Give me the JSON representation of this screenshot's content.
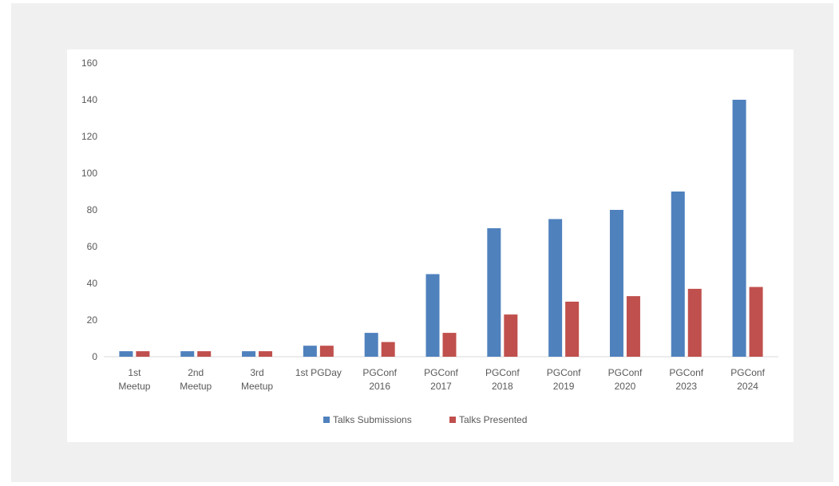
{
  "colors": {
    "page_bg": "#f0f0f0",
    "plot_bg": "#ffffff",
    "axis": "#d9d9d9",
    "text": "#595959"
  },
  "chart_data": {
    "type": "bar",
    "title": "",
    "xlabel": "",
    "ylabel": "",
    "ylim": [
      0,
      160
    ],
    "yticks": [
      0,
      20,
      40,
      60,
      80,
      100,
      120,
      140,
      160
    ],
    "grid": false,
    "legend_position": "bottom",
    "categories": [
      [
        "1st",
        "Meetup"
      ],
      [
        "2nd",
        "Meetup"
      ],
      [
        "3rd",
        "Meetup"
      ],
      [
        "1st PGDay"
      ],
      [
        "PGConf",
        "2016"
      ],
      [
        "PGConf",
        "2017"
      ],
      [
        "PGConf",
        "2018"
      ],
      [
        "PGConf",
        "2019"
      ],
      [
        "PGConf",
        "2020"
      ],
      [
        "PGConf",
        "2023"
      ],
      [
        "PGConf",
        "2024"
      ]
    ],
    "series": [
      {
        "name": "Talks Submissions",
        "color": "#4f81bd",
        "values": [
          3,
          3,
          3,
          6,
          13,
          45,
          70,
          75,
          80,
          90,
          140
        ]
      },
      {
        "name": "Talks Presented",
        "color": "#c0504d",
        "values": [
          3,
          3,
          3,
          6,
          8,
          13,
          23,
          30,
          33,
          37,
          38
        ]
      }
    ]
  }
}
